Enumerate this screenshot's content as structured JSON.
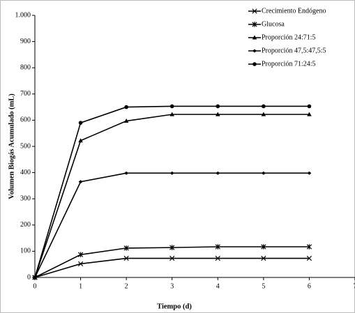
{
  "chart_data": {
    "type": "line",
    "ylabel": "Volumen Biogás Acumulado (mL)",
    "xlabel": "Tiempo (d)",
    "x": [
      0,
      1,
      2,
      3,
      4,
      5,
      6
    ],
    "xlim": [
      0,
      7
    ],
    "xticks": [
      0,
      1,
      2,
      3,
      4,
      5,
      6,
      7
    ],
    "ylim": [
      0,
      1000
    ],
    "yticks": [
      0,
      100,
      200,
      300,
      400,
      500,
      600,
      700,
      800,
      900,
      {
        "value": 1000,
        "label": "1.000"
      }
    ],
    "legend": "upper right",
    "series": [
      {
        "name": "Crecimiento Endógeno",
        "color": "#000000",
        "marker": "x",
        "values": [
          0,
          52,
          73,
          73,
          73,
          73,
          73
        ]
      },
      {
        "name": "Glucosa",
        "color": "#000000",
        "marker": "asterisk",
        "values": [
          0,
          87,
          112,
          114,
          117,
          117,
          117
        ]
      },
      {
        "name": "Proporción 24:71:5",
        "color": "#000000",
        "marker": "triangle",
        "values": [
          0,
          522,
          597,
          622,
          622,
          622,
          622
        ]
      },
      {
        "name": "Proporción 47,5:47,5:5",
        "color": "#000000",
        "marker": "diamond",
        "values": [
          0,
          365,
          398,
          398,
          398,
          398,
          398
        ]
      },
      {
        "name": "Proporción 71:24:5",
        "color": "#000000",
        "marker": "circle",
        "values": [
          0,
          590,
          650,
          653,
          653,
          653,
          653
        ]
      }
    ]
  }
}
